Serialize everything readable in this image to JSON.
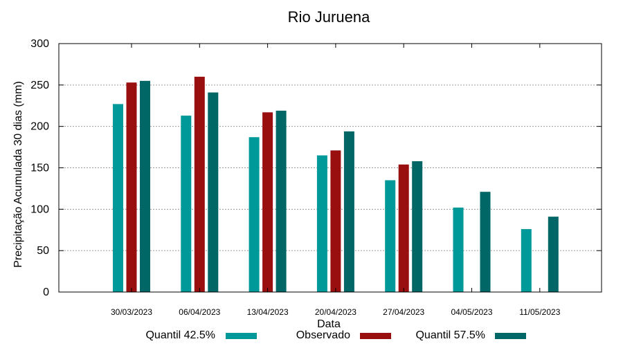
{
  "chart_data": {
    "type": "bar",
    "title": "Rio Juruena",
    "xlabel": "Data",
    "ylabel": "Precipitação Acumulada 30 dias (mm)",
    "ylim": [
      0,
      300
    ],
    "yticks": [
      0,
      50,
      100,
      150,
      200,
      250,
      300
    ],
    "grid": true,
    "legend_position": "bottom",
    "categories": [
      "30/03/2023",
      "06/04/2023",
      "13/04/2023",
      "20/04/2023",
      "27/04/2023",
      "04/05/2023",
      "11/05/2023"
    ],
    "series": [
      {
        "name": "Quantil 42.5%",
        "color": "#009999",
        "values": [
          227,
          213,
          187,
          165,
          135,
          102,
          76
        ]
      },
      {
        "name": "Observado",
        "color": "#990f0f",
        "values": [
          253,
          260,
          217,
          171,
          154,
          null,
          null
        ]
      },
      {
        "name": "Quantil 57.5%",
        "color": "#006666",
        "values": [
          255,
          241,
          219,
          194,
          158,
          121,
          91
        ]
      }
    ]
  }
}
